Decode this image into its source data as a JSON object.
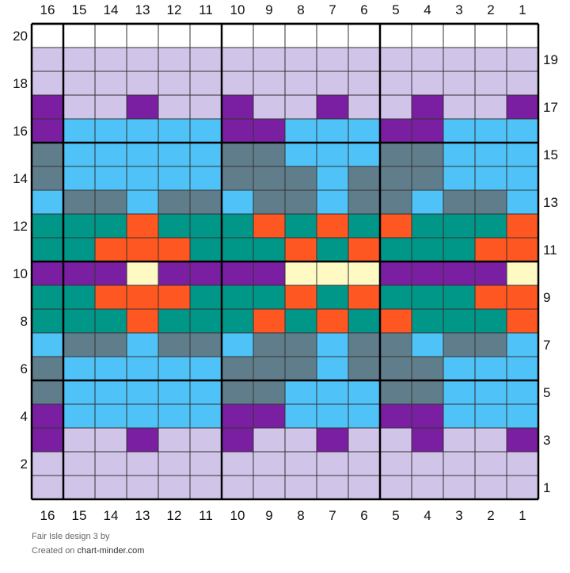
{
  "chart": {
    "type": "knitting-chart",
    "columns": 16,
    "rows": 20,
    "column_labels": [
      "16",
      "15",
      "14",
      "13",
      "12",
      "11",
      "10",
      "9",
      "8",
      "7",
      "6",
      "5",
      "4",
      "3",
      "2",
      "1"
    ],
    "left_row_labels": [
      "20",
      "18",
      "16",
      "14",
      "12",
      "10",
      "8",
      "6",
      "4",
      "2"
    ],
    "right_row_labels": [
      "19",
      "17",
      "15",
      "13",
      "11",
      "9",
      "7",
      "5",
      "3",
      "1"
    ],
    "palette": {
      "W": "#ffffff",
      "L": "#d1c4e9",
      "P": "#7b1fa2",
      "B": "#4fc3f7",
      "G": "#607d8b",
      "T": "#009688",
      "O": "#ff5722",
      "Y": "#fff9c4"
    },
    "grid_rows_top_to_bottom": [
      "WWWWWWWWWWWWWWWW",
      "LLLLLLLLLLLLLLLL",
      "LLLLLLLLLLLLLLLL",
      "PLLPLLPLLPLLPLLP",
      "PBBBBBPPBBBPPBBB",
      "GBBBBBGGBBBGGBBB",
      "GBBBBBGGGBGGGBBB",
      "BGGBGGBGGBGGBGGB",
      "TTTOTTTOTOTOTTTO",
      "TTOOOTTTOTOTTTOO",
      "PPPYPPPPYYYPPPPY",
      "TTOOOTTTOTOTTTOO",
      "TTTOTTTOTOTOTTTO",
      "BGGBGGBGGBGGBGGB",
      "GBBBBBGGGBGGGBBB",
      "GBBBBBGGBBBGGBBB",
      "PBBBBBPPBBBPPBBB",
      "PLLPLLPLLPLLPLLP",
      "LLLLLLLLLLLLLLLL",
      "LLLLLLLLLLLLLLLL"
    ]
  },
  "caption": {
    "title": "Fair Isle design 3",
    "by": " by",
    "created_prefix": "Created on ",
    "site": "chart-minder.com"
  }
}
